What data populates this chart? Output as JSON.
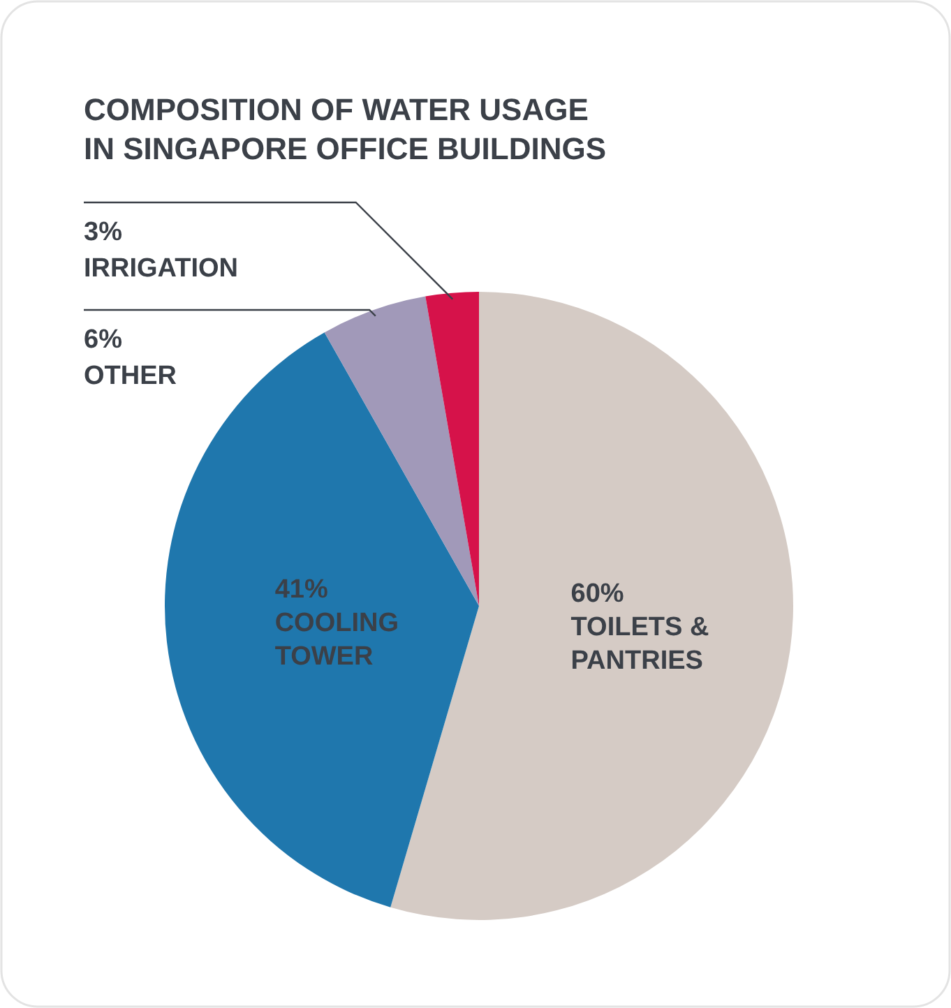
{
  "chart_data": {
    "type": "pie",
    "title": "COMPOSITION OF WATER USAGE IN SINGAPORE OFFICE BUILDINGS",
    "categories": [
      "TOILETS & PANTRIES",
      "COOLING TOWER",
      "OTHER",
      "IRRIGATION"
    ],
    "values": [
      60,
      41,
      6,
      3
    ],
    "colors": [
      "#d5cbc5",
      "#1f77ad",
      "#a199b9",
      "#d6124a"
    ],
    "value_labels": [
      "60%",
      "41%",
      "6%",
      "3%"
    ]
  }
}
